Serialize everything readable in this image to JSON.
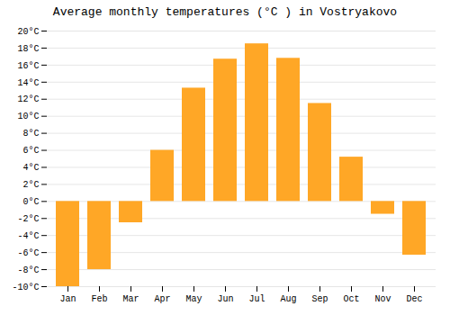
{
  "chart_data": {
    "type": "bar",
    "title": "Average monthly temperatures (°C ) in Vostryakovo",
    "categories": [
      "Jan",
      "Feb",
      "Mar",
      "Apr",
      "May",
      "Jun",
      "Jul",
      "Aug",
      "Sep",
      "Oct",
      "Nov",
      "Dec"
    ],
    "values": [
      -10,
      -8,
      -2.5,
      6,
      13.3,
      16.7,
      18.5,
      16.8,
      11.5,
      5.2,
      -1.5,
      -6.3
    ],
    "color": "#FFA726",
    "ylim": [
      -10,
      20
    ],
    "yticks": [
      {
        "value": -10,
        "label": "-10°C"
      },
      {
        "value": -8,
        "label": "-8°C"
      },
      {
        "value": -6,
        "label": "-6°C"
      },
      {
        "value": -4,
        "label": "-4°C"
      },
      {
        "value": -2,
        "label": "-2°C"
      },
      {
        "value": 0,
        "label": "0°C"
      },
      {
        "value": 2,
        "label": "2°C"
      },
      {
        "value": 4,
        "label": "4°C"
      },
      {
        "value": 6,
        "label": "6°C"
      },
      {
        "value": 8,
        "label": "8°C"
      },
      {
        "value": 10,
        "label": "10°C"
      },
      {
        "value": 12,
        "label": "12°C"
      },
      {
        "value": 14,
        "label": "14°C"
      },
      {
        "value": 16,
        "label": "16°C"
      },
      {
        "value": 18,
        "label": "18°C"
      },
      {
        "value": 20,
        "label": "20°C"
      }
    ],
    "grid": true
  }
}
